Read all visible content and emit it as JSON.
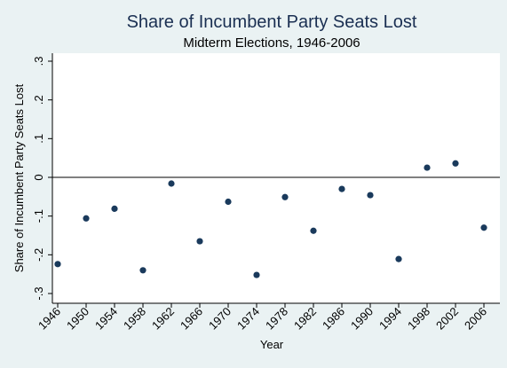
{
  "chart_data": {
    "type": "scatter",
    "title": "Share of Incumbent Party Seats Lost",
    "subtitle": "Midterm Elections, 1946-2006",
    "xlabel": "Year",
    "ylabel": "Share of Incumbent Party Seats Lost",
    "xlim": [
      1946,
      2006
    ],
    "ylim": [
      -0.3,
      0.3
    ],
    "x_ticks": [
      1946,
      1950,
      1954,
      1958,
      1962,
      1966,
      1970,
      1974,
      1978,
      1982,
      1986,
      1990,
      1994,
      1998,
      2002,
      2006
    ],
    "x_tick_labels": [
      "1946",
      "1950",
      "1954",
      "1958",
      "1962",
      "1966",
      "1970",
      "1974",
      "1978",
      "1982",
      "1986",
      "1990",
      "1994",
      "1998",
      "2002",
      "2006"
    ],
    "y_ticks": [
      -0.3,
      -0.2,
      -0.1,
      0,
      0.1,
      0.2,
      0.3
    ],
    "y_tick_labels": [
      "-.3",
      "-.2",
      "-.1",
      "0",
      ".1",
      ".2",
      ".3"
    ],
    "reference_line_y": 0,
    "grid": false,
    "marker_color": "#1a3a5c",
    "points": [
      {
        "x": 1946,
        "y": -0.224
      },
      {
        "x": 1950,
        "y": -0.106
      },
      {
        "x": 1954,
        "y": -0.081
      },
      {
        "x": 1958,
        "y": -0.24
      },
      {
        "x": 1962,
        "y": -0.016
      },
      {
        "x": 1966,
        "y": -0.165
      },
      {
        "x": 1970,
        "y": -0.063
      },
      {
        "x": 1974,
        "y": -0.252
      },
      {
        "x": 1978,
        "y": -0.051
      },
      {
        "x": 1982,
        "y": -0.138
      },
      {
        "x": 1986,
        "y": -0.03
      },
      {
        "x": 1990,
        "y": -0.046
      },
      {
        "x": 1994,
        "y": -0.211
      },
      {
        "x": 1998,
        "y": 0.025
      },
      {
        "x": 2002,
        "y": 0.036
      },
      {
        "x": 2006,
        "y": -0.13
      }
    ]
  }
}
